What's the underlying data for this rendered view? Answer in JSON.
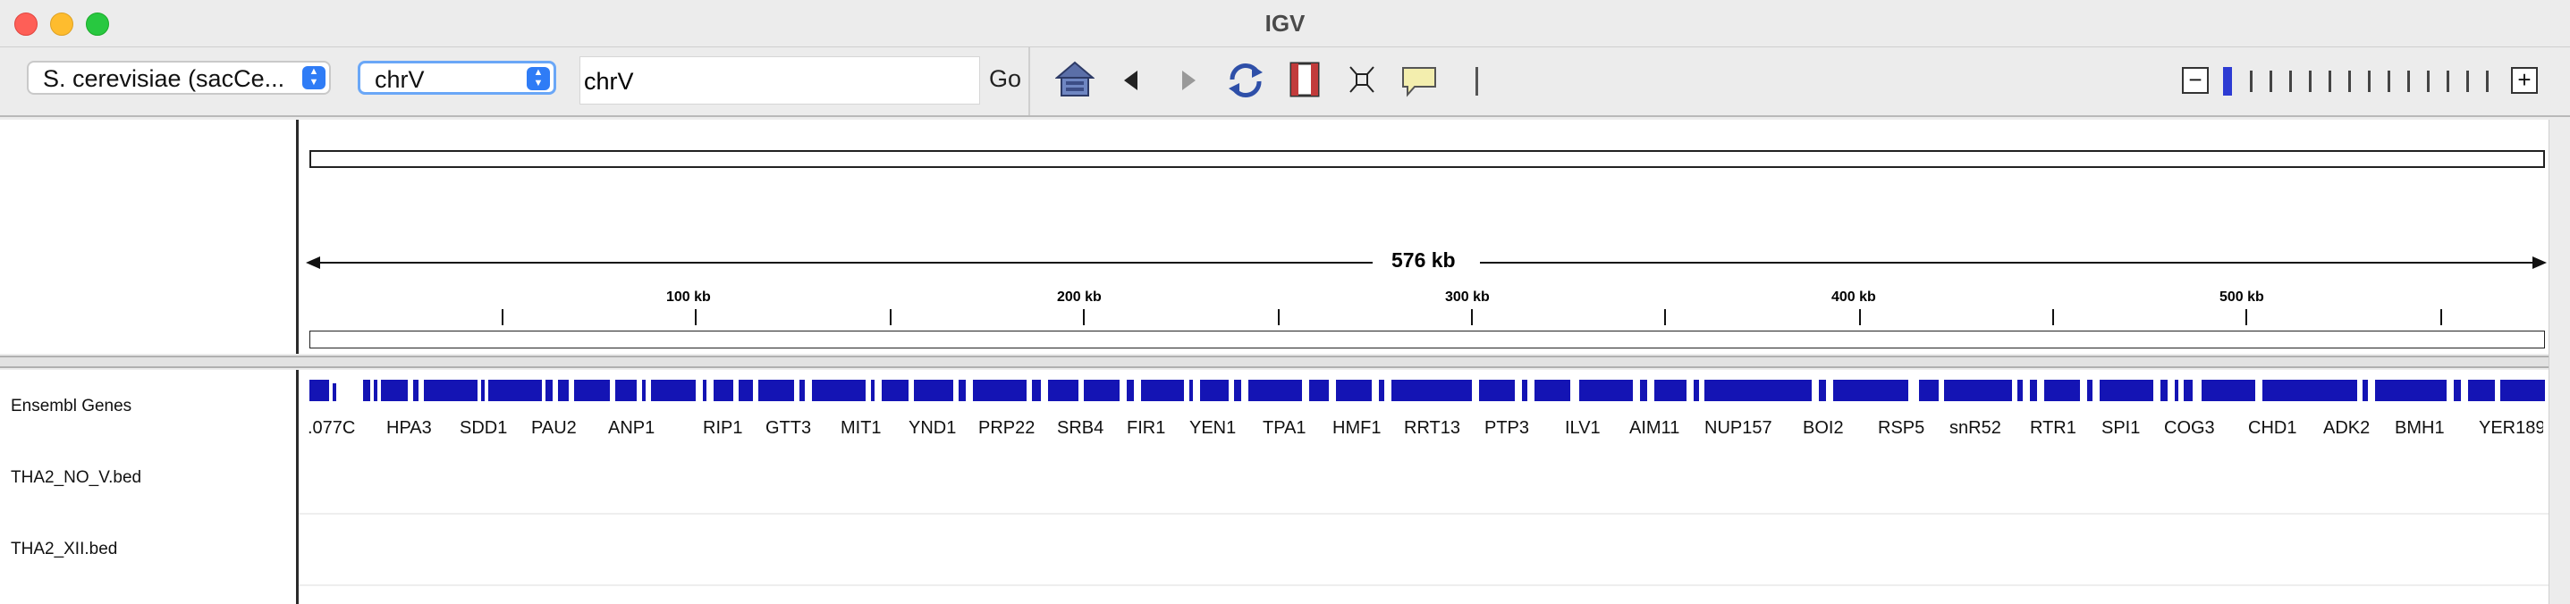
{
  "window": {
    "title": "IGV"
  },
  "toolbar": {
    "genome_select": "S. cerevisiae (sacCe...",
    "chromosome_select": "chrV",
    "locus_value": "chrV",
    "go_label": "Go"
  },
  "ruler": {
    "span_label": "576 kb",
    "ticks": [
      "100 kb",
      "200 kb",
      "300 kb",
      "400 kb",
      "500 kb"
    ]
  },
  "tracks": [
    {
      "name": "Ensembl Genes"
    },
    {
      "name": "THA2_NO_V.bed"
    },
    {
      "name": "THA2_XII.bed"
    }
  ],
  "genes": [
    ".077C",
    "HPA3",
    "SDD1",
    "PAU2",
    "ANP1",
    "RIP1",
    "GTT3",
    "MIT1",
    "YND1",
    "PRP22",
    "SRB4",
    "FIR1",
    "YEN1",
    "TPA1",
    "HMF1",
    "RRT13",
    "PTP3",
    "ILV1",
    "AIM11",
    "NUP157",
    "BOI2",
    "RSP5",
    "snR52",
    "RTR1",
    "SPI1",
    "COG3",
    "CHD1",
    "ADK2",
    "BMH1",
    "YER189"
  ],
  "colors": {
    "gene_feature": "#1414b4",
    "zoom_current": "#2d3bd3"
  }
}
